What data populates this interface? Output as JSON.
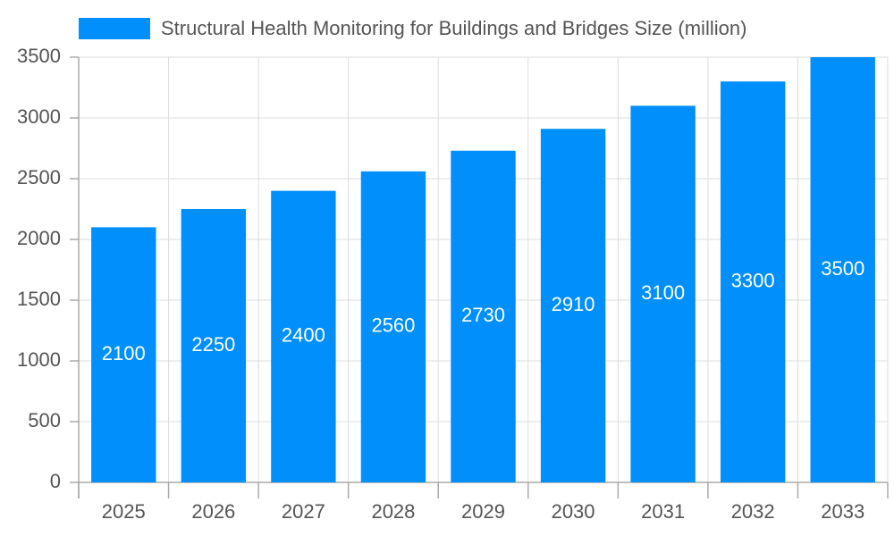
{
  "chart_data": {
    "type": "bar",
    "categories": [
      "2025",
      "2026",
      "2027",
      "2028",
      "2029",
      "2030",
      "2031",
      "2032",
      "2033"
    ],
    "series": [
      {
        "name": "Structural Health Monitoring for Buildings and Bridges Size (million)",
        "color": "#008ffb",
        "values": [
          2100,
          2250,
          2400,
          2560,
          2730,
          2910,
          3100,
          3300,
          3500
        ]
      }
    ],
    "ylim": [
      0,
      3500
    ],
    "yticks": [
      0,
      500,
      1000,
      1500,
      2000,
      2500,
      3000,
      3500
    ],
    "grid": true,
    "legend": "top"
  }
}
